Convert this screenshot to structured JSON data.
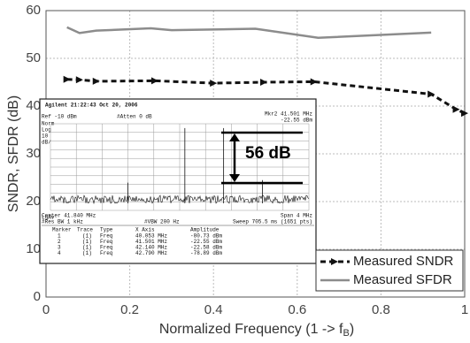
{
  "chart_data": {
    "type": "line",
    "y_label": "SNDR, SFDR (dB)",
    "x_label": [
      "Normalized Frequency (1 -> f",
      "B",
      ")"
    ],
    "xlim": [
      0,
      1
    ],
    "xticks": [
      0,
      0.2,
      0.4,
      0.6,
      0.8,
      1
    ],
    "ylim": [
      0,
      60
    ],
    "yticks": [
      0,
      10,
      20,
      30,
      40,
      50,
      60
    ],
    "grid": true,
    "legend": "lower right",
    "series": [
      {
        "name": "Measured SNDR",
        "color": "#111111",
        "style": "dashed-marker",
        "x": [
          0.05,
          0.08,
          0.12,
          0.26,
          0.4,
          0.52,
          0.64,
          0.92,
          0.98,
          1.0
        ],
        "values": [
          45.6,
          45.5,
          45.2,
          45.3,
          44.8,
          45.0,
          45.1,
          42.5,
          39.3,
          38.5
        ]
      },
      {
        "name": "Measured SFDR",
        "color": "#8c8c8c",
        "style": "solid",
        "x": [
          0.05,
          0.08,
          0.12,
          0.25,
          0.3,
          0.5,
          0.65,
          0.92
        ],
        "values": [
          56.5,
          55.3,
          55.8,
          56.3,
          55.9,
          56.2,
          54.3,
          55.4
        ]
      }
    ],
    "inset": {
      "header": "Agilent 21:22:43 Oct 20, 2006",
      "ref": "Ref -10 dBm",
      "atten": "#Atten 0 dB",
      "marker_freq": "Mkr2 41.501 MHz",
      "marker_amp": "-22.55 dBm",
      "side_labels": [
        "Norm",
        "Log",
        "10",
        "dB/",
        "LgAv"
      ],
      "center": "Center 41.840 MHz",
      "span": "Span 4 MHz",
      "res_bw": "#Res BW 1 kHz",
      "vbw": "#VBW 200 Hz",
      "sweep": "Sweep 705.5 ms (1651 pts)",
      "table_header": [
        "Marker",
        "Trace",
        "Type",
        "X Axis",
        "Amplitude"
      ],
      "table_rows": [
        [
          "1",
          "(1)",
          "Freq",
          "40.053 MHz",
          "-80.73 dBm"
        ],
        [
          "2",
          "(1)",
          "Freq",
          "41.501 MHz",
          "-22.55 dBm"
        ],
        [
          "3",
          "(1)",
          "Freq",
          "42.140 MHz",
          "-22.58 dBm"
        ],
        [
          "4",
          "(1)",
          "Freq",
          "42.790 MHz",
          "-78.89 dBm"
        ]
      ],
      "annotation": "56 dB"
    }
  }
}
